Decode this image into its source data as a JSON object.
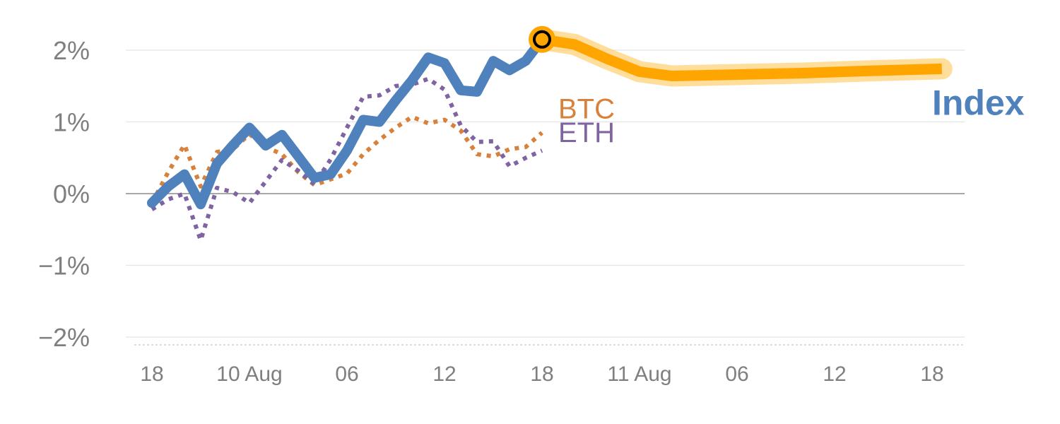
{
  "chart_data": {
    "type": "line",
    "title": "",
    "xlabel": "",
    "ylabel": "",
    "ylim": [
      -2,
      2
    ],
    "y_ticks": [
      {
        "value": 2,
        "label": "2%"
      },
      {
        "value": 1,
        "label": "1%"
      },
      {
        "value": 0,
        "label": "0%"
      },
      {
        "value": -1,
        "label": "−1%"
      },
      {
        "value": -2,
        "label": "−2%"
      }
    ],
    "x_tick_labels": [
      "18",
      "10 Aug",
      "06",
      "12",
      "18",
      "11 Aug",
      "06",
      "12",
      "18"
    ],
    "grid": true,
    "zero_line": true,
    "series": [
      {
        "name": "Index",
        "color": "#4f81bd",
        "style": "solid",
        "points": [
          [
            0,
            -0.13
          ],
          [
            0.5,
            0.1
          ],
          [
            1,
            0.27
          ],
          [
            1.5,
            -0.15
          ],
          [
            2,
            0.42
          ],
          [
            2.5,
            0.68
          ],
          [
            3,
            0.92
          ],
          [
            3.5,
            0.67
          ],
          [
            4,
            0.82
          ],
          [
            4.5,
            0.52
          ],
          [
            5,
            0.22
          ],
          [
            5.5,
            0.27
          ],
          [
            6,
            0.6
          ],
          [
            6.5,
            1.03
          ],
          [
            7,
            1.0
          ],
          [
            7.5,
            1.3
          ],
          [
            8,
            1.58
          ],
          [
            8.5,
            1.9
          ],
          [
            9,
            1.82
          ],
          [
            9.5,
            1.44
          ],
          [
            10,
            1.42
          ],
          [
            10.5,
            1.85
          ],
          [
            11,
            1.72
          ],
          [
            11.5,
            1.85
          ],
          [
            12,
            2.15
          ]
        ]
      },
      {
        "name": "BTC",
        "color": "#d9813a",
        "style": "dotted",
        "points": [
          [
            0,
            -0.13
          ],
          [
            0.5,
            0.3
          ],
          [
            1,
            0.68
          ],
          [
            1.5,
            0.1
          ],
          [
            2,
            0.58
          ],
          [
            2.5,
            0.62
          ],
          [
            3,
            0.83
          ],
          [
            3.5,
            0.65
          ],
          [
            4,
            0.55
          ],
          [
            4.5,
            0.3
          ],
          [
            5,
            0.12
          ],
          [
            5.5,
            0.2
          ],
          [
            6,
            0.28
          ],
          [
            6.5,
            0.55
          ],
          [
            7,
            0.75
          ],
          [
            7.5,
            0.92
          ],
          [
            8,
            1.07
          ],
          [
            8.5,
            0.98
          ],
          [
            9,
            1.03
          ],
          [
            9.5,
            0.88
          ],
          [
            10,
            0.55
          ],
          [
            10.5,
            0.52
          ],
          [
            11,
            0.62
          ],
          [
            11.5,
            0.65
          ],
          [
            12,
            0.85
          ]
        ]
      },
      {
        "name": "ETH",
        "color": "#8064a2",
        "style": "dotted",
        "points": [
          [
            0,
            -0.22
          ],
          [
            0.5,
            -0.08
          ],
          [
            1,
            0.0
          ],
          [
            1.5,
            -0.65
          ],
          [
            2,
            0.08
          ],
          [
            2.5,
            0.02
          ],
          [
            3,
            -0.13
          ],
          [
            3.5,
            0.17
          ],
          [
            4,
            0.47
          ],
          [
            4.5,
            0.32
          ],
          [
            5,
            0.13
          ],
          [
            5.5,
            0.48
          ],
          [
            6,
            0.92
          ],
          [
            6.5,
            1.35
          ],
          [
            7,
            1.37
          ],
          [
            7.5,
            1.5
          ],
          [
            8,
            1.52
          ],
          [
            8.5,
            1.6
          ],
          [
            9,
            1.45
          ],
          [
            9.5,
            0.95
          ],
          [
            10,
            0.72
          ],
          [
            10.5,
            0.73
          ],
          [
            11,
            0.38
          ],
          [
            11.5,
            0.5
          ],
          [
            12,
            0.6
          ]
        ]
      },
      {
        "name": "Index",
        "color": "#ffa500",
        "style": "projection",
        "points": [
          [
            12,
            2.15
          ],
          [
            13,
            2.08
          ],
          [
            14,
            1.88
          ],
          [
            15,
            1.7
          ],
          [
            16,
            1.64
          ],
          [
            18,
            1.66
          ],
          [
            20,
            1.68
          ],
          [
            22,
            1.71
          ],
          [
            24.3,
            1.74
          ]
        ]
      }
    ],
    "marker": {
      "x": 12,
      "y": 2.15
    },
    "labels": [
      {
        "text": "BTC",
        "color": "#d9813a",
        "x": 12.5,
        "y": 1.05
      },
      {
        "text": "ETH",
        "color": "#8064a2",
        "x": 12.5,
        "y": 0.72
      },
      {
        "text": "Index",
        "color": "#4f81bd",
        "x": 24.0,
        "y": 1.1
      }
    ]
  }
}
